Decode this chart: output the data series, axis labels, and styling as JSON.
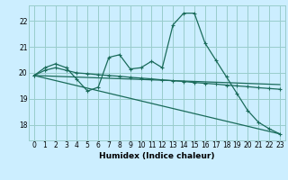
{
  "xlabel": "Humidex (Indice chaleur)",
  "bg_color": "#cceeff",
  "grid_color": "#99cccc",
  "line_color": "#1a6b5a",
  "xlim": [
    -0.5,
    23.5
  ],
  "ylim": [
    17.4,
    22.6
  ],
  "yticks": [
    18,
    19,
    20,
    21,
    22
  ],
  "xticks": [
    0,
    1,
    2,
    3,
    4,
    5,
    6,
    7,
    8,
    9,
    10,
    11,
    12,
    13,
    14,
    15,
    16,
    17,
    18,
    19,
    20,
    21,
    22,
    23
  ],
  "series1_x": [
    0,
    1,
    2,
    3,
    4,
    5,
    6,
    7,
    8,
    9,
    10,
    11,
    12,
    13,
    14,
    15,
    16,
    17,
    18,
    19,
    20,
    21,
    22,
    23
  ],
  "series1_y": [
    19.9,
    20.2,
    20.35,
    20.2,
    19.75,
    19.3,
    19.45,
    20.6,
    20.7,
    20.15,
    20.2,
    20.45,
    20.2,
    21.85,
    22.3,
    22.3,
    21.15,
    20.5,
    19.85,
    19.2,
    18.55,
    18.1,
    17.85,
    17.65
  ],
  "series2_x": [
    0,
    1,
    2,
    3,
    4,
    5,
    6,
    7,
    8,
    9,
    10,
    11,
    12,
    13,
    14,
    15,
    16,
    17,
    18,
    19,
    20,
    21,
    22,
    23
  ],
  "series2_y": [
    19.9,
    20.1,
    20.2,
    20.1,
    20.0,
    19.97,
    19.93,
    19.9,
    19.87,
    19.83,
    19.8,
    19.77,
    19.73,
    19.7,
    19.67,
    19.63,
    19.6,
    19.57,
    19.53,
    19.5,
    19.47,
    19.43,
    19.4,
    19.37
  ],
  "series3_x": [
    0,
    23
  ],
  "series3_y": [
    19.9,
    19.55
  ],
  "series4_x": [
    0,
    23
  ],
  "series4_y": [
    19.9,
    17.65
  ]
}
